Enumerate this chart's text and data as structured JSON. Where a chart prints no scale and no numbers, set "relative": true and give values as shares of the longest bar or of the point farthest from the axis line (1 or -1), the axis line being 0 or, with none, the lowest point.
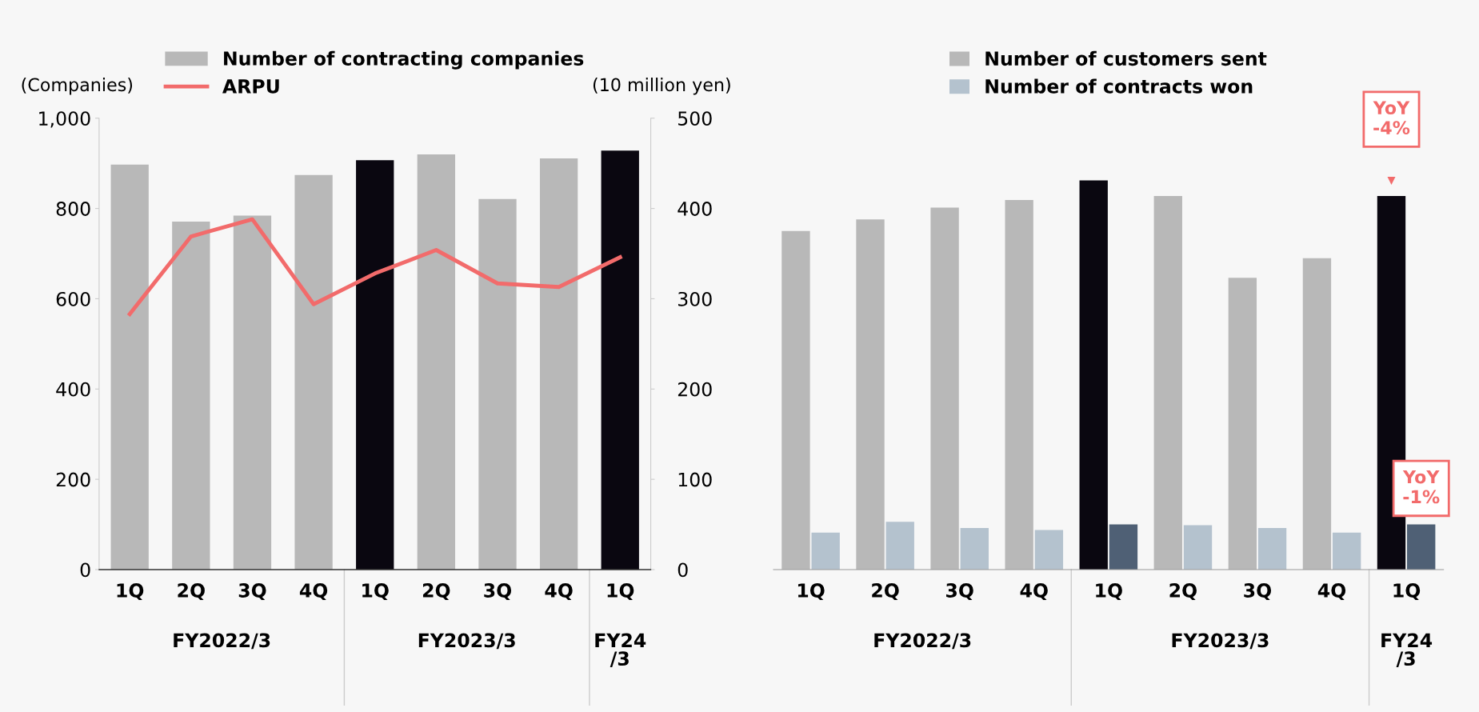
{
  "chart_data": [
    {
      "type": "bar",
      "categories": [
        "1Q",
        "2Q",
        "3Q",
        "4Q",
        "1Q",
        "2Q",
        "3Q",
        "4Q",
        "1Q"
      ],
      "ylabel": "(Companies)",
      "y2label": "(10 million yen)",
      "ylim": [
        0,
        1000
      ],
      "yticks": [
        0,
        200,
        400,
        600,
        800,
        {
          "value": 1000,
          "label": "1,000"
        }
      ],
      "y2lim": [
        0,
        500
      ],
      "y2ticks": [
        0,
        100,
        200,
        300,
        400,
        500
      ],
      "legend": "top",
      "grid": false,
      "annotations": [
        "FY2022/3",
        "FY2023/3",
        "FY24\n/3"
      ],
      "series": [
        {
          "name": "Number of contracting companies",
          "type": "bar",
          "color": "#b8b8b8",
          "colors": [
            "#b8b8b8",
            "#b8b8b8",
            "#b8b8b8",
            "#b8b8b8",
            "#0a0710",
            "#b8b8b8",
            "#b8b8b8",
            "#b8b8b8",
            "#0a0710"
          ],
          "values": [
            897,
            771,
            784,
            874,
            907,
            920,
            821,
            911,
            928
          ]
        },
        {
          "name": "ARPU",
          "type": "line",
          "axis": "y2",
          "color": "#f26b6b",
          "values": [
            283,
            369,
            388,
            294,
            328,
            354,
            317,
            313,
            346
          ]
        }
      ]
    },
    {
      "type": "bar",
      "relative": true,
      "categories": [
        "1Q",
        "2Q",
        "3Q",
        "4Q",
        "1Q",
        "2Q",
        "3Q",
        "4Q",
        "1Q"
      ],
      "legend": "top",
      "grid": false,
      "annotations": [
        "FY2022/3",
        "FY2023/3",
        "FY24\n/3",
        "YoY\n-4%",
        "YoY\n-1%"
      ],
      "series": [
        {
          "name": "Number of customers sent",
          "color": "#b8b8b8",
          "colors": [
            "#b8b8b8",
            "#b8b8b8",
            "#b8b8b8",
            "#b8b8b8",
            "#0a0710",
            "#b8b8b8",
            "#b8b8b8",
            "#b8b8b8",
            "#0a0710"
          ],
          "values": [
            0.87,
            0.9,
            0.93,
            0.95,
            1,
            0.96,
            0.75,
            0.8,
            0.96
          ]
        },
        {
          "name": "Number of contracts won",
          "color": "#b4c2ce",
          "colors": [
            "#b4c2ce",
            "#b4c2ce",
            "#b4c2ce",
            "#b4c2ce",
            "#4f6075",
            "#b4c2ce",
            "#b4c2ce",
            "#b4c2ce",
            "#4f6075"
          ],
          "values": [
            0.095,
            0.123,
            0.107,
            0.102,
            0.116,
            0.114,
            0.107,
            0.095,
            0.116
          ]
        }
      ]
    }
  ]
}
